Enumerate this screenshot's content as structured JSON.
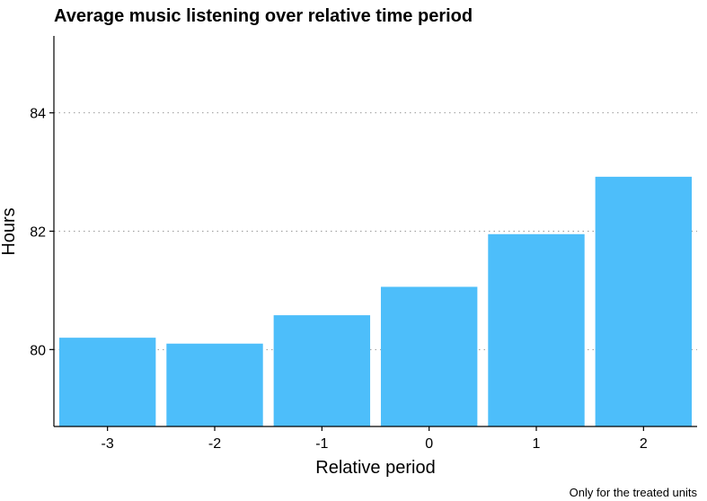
{
  "chart_data": {
    "type": "bar",
    "title": "Average music listening over relative time period",
    "xlabel": "Relative period",
    "ylabel": "Hours",
    "caption": "Only for the treated units",
    "categories": [
      "-3",
      "-2",
      "-1",
      "0",
      "1",
      "2"
    ],
    "values": [
      80.2,
      80.1,
      80.58,
      81.06,
      81.95,
      82.92
    ],
    "ylim": [
      78.7,
      85.3
    ],
    "yticks": [
      80,
      82,
      84
    ],
    "ytick_labels": [
      "80",
      "82",
      "84"
    ],
    "grid": "horizontal-dotted",
    "bar_color": "#4DBEFA"
  }
}
